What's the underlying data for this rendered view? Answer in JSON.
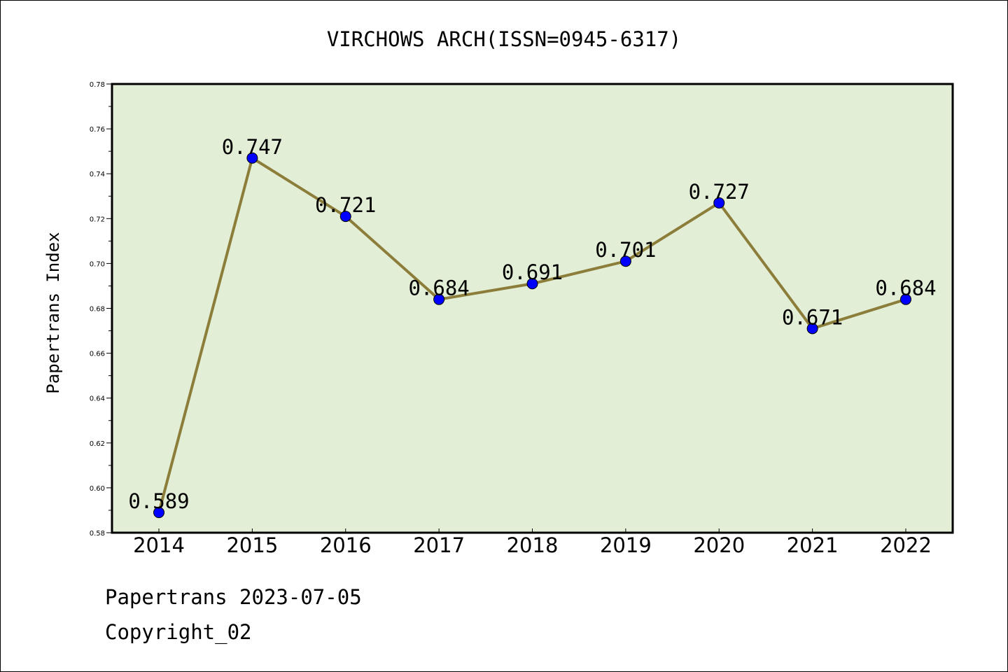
{
  "chart_data": {
    "type": "line",
    "title": "VIRCHOWS ARCH(ISSN=0945-6317)",
    "ylabel": "Papertrans Index",
    "xlabel": "",
    "categories": [
      "2014",
      "2015",
      "2016",
      "2017",
      "2018",
      "2019",
      "2020",
      "2021",
      "2022"
    ],
    "series": [
      {
        "values": [
          0.589,
          0.747,
          0.721,
          0.684,
          0.691,
          0.701,
          0.727,
          0.671,
          0.684
        ],
        "data_labels": [
          "0.589",
          "0.747",
          "0.721",
          "0.684",
          "0.691",
          "0.701",
          "0.727",
          "0.671",
          "0.684"
        ]
      }
    ],
    "ylim": [
      0.58,
      0.78
    ],
    "yticks": [
      "0.58",
      "0.60",
      "0.62",
      "0.64",
      "0.66",
      "0.68",
      "0.70",
      "0.72",
      "0.74",
      "0.76",
      "0.78"
    ],
    "grid": false,
    "legend": "none",
    "colors": {
      "plot_background": "#e2efd6",
      "line": "#8c7e3a",
      "marker": "#0000ff"
    }
  },
  "footer": {
    "date_line": "Papertrans 2023-07-05",
    "copyright": "Copyright_02"
  }
}
